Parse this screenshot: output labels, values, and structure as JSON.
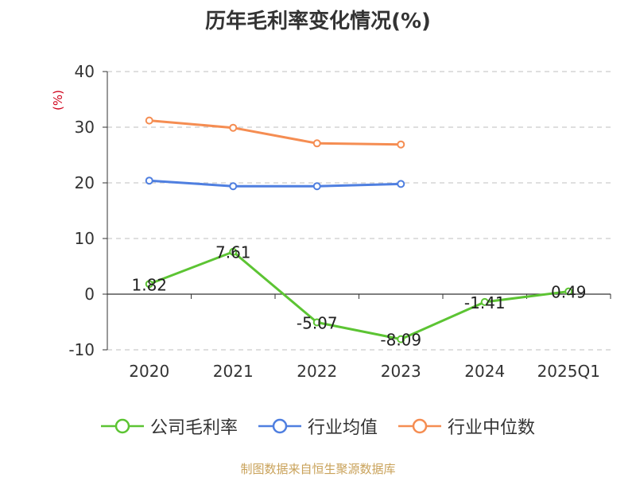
{
  "chart_data": {
    "type": "line",
    "title": "历年毛利率变化情况(%)",
    "ylabel": "(%)",
    "xlabel": "",
    "categories": [
      "2020",
      "2021",
      "2022",
      "2023",
      "2024",
      "2025Q1"
    ],
    "ylim": [
      -10,
      40
    ],
    "yticks": [
      "40",
      "30",
      "20",
      "10",
      "0",
      "-10"
    ],
    "grid": true,
    "legend_position": "bottom",
    "series": [
      {
        "name": "公司毛利率",
        "color": "#5cc433",
        "values": [
          1.82,
          7.61,
          -5.07,
          -8.09,
          -1.41,
          0.49
        ],
        "labels": [
          "1.82",
          "7.61",
          "-5.07",
          "-8.09",
          "-1.41",
          "0.49"
        ]
      },
      {
        "name": "行业均值",
        "color": "#4f7fe0",
        "values": [
          20.4,
          19.4,
          19.4,
          19.8,
          null,
          null
        ]
      },
      {
        "name": "行业中位数",
        "color": "#f58d52",
        "values": [
          31.2,
          29.9,
          27.1,
          26.9,
          null,
          null
        ]
      }
    ]
  },
  "footer": {
    "source": "制图数据来自恒生聚源数据库"
  }
}
